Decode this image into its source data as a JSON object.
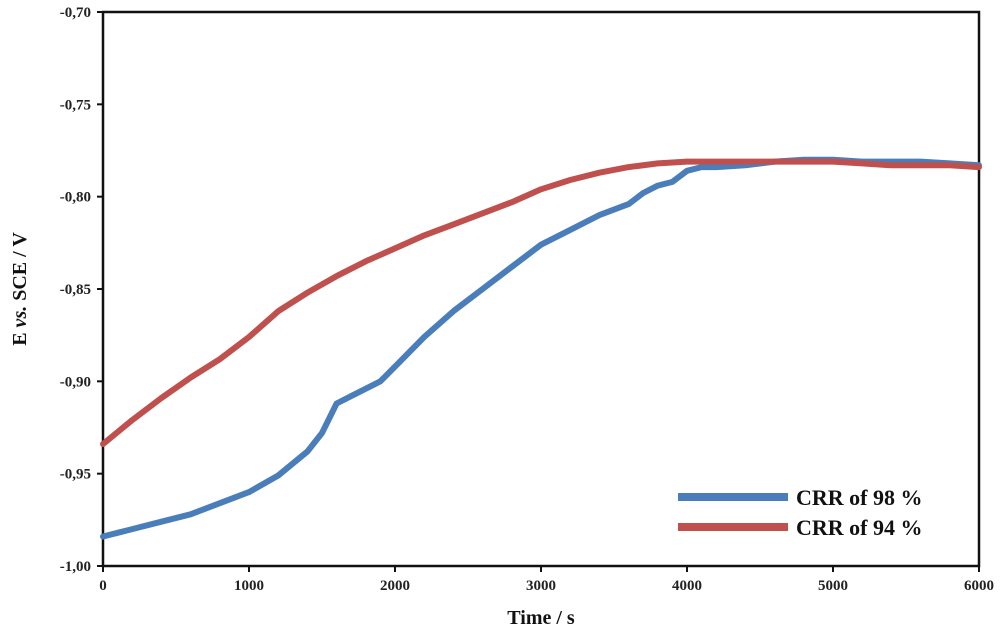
{
  "chart_data": {
    "type": "line",
    "xlabel": "Time / s",
    "ylabel_parts": [
      "E ",
      "vs.",
      " SCE / V"
    ],
    "xlim": [
      0,
      6000
    ],
    "ylim": [
      -1.0,
      -0.7
    ],
    "x_ticks": [
      0,
      1000,
      2000,
      3000,
      4000,
      5000,
      6000
    ],
    "x_tick_labels": [
      "0",
      "1000",
      "2000",
      "3000",
      "4000",
      "5000",
      "6000"
    ],
    "y_ticks": [
      -0.7,
      -0.75,
      -0.8,
      -0.85,
      -0.9,
      -0.95,
      -1.0
    ],
    "y_tick_labels": [
      "-0,70",
      "-0,75",
      "-0,80",
      "-0,85",
      "-0,90",
      "-0,95",
      "-1,00"
    ],
    "grid": false,
    "legend_position": "bottom-right",
    "series": [
      {
        "name": "CRR of 98 %",
        "color": "#4a7ebb",
        "x": [
          0,
          100,
          200,
          400,
          600,
          800,
          1000,
          1200,
          1400,
          1500,
          1600,
          1700,
          1800,
          1900,
          2000,
          2200,
          2400,
          2600,
          2800,
          3000,
          3200,
          3400,
          3600,
          3700,
          3800,
          3900,
          4000,
          4100,
          4200,
          4400,
          4600,
          4800,
          5000,
          5200,
          5400,
          5600,
          5800,
          6000
        ],
        "y": [
          -0.984,
          -0.982,
          -0.98,
          -0.976,
          -0.972,
          -0.966,
          -0.96,
          -0.951,
          -0.938,
          -0.928,
          -0.912,
          -0.908,
          -0.904,
          -0.9,
          -0.892,
          -0.876,
          -0.862,
          -0.85,
          -0.838,
          -0.826,
          -0.818,
          -0.81,
          -0.804,
          -0.798,
          -0.794,
          -0.792,
          -0.786,
          -0.784,
          -0.784,
          -0.783,
          -0.781,
          -0.78,
          -0.78,
          -0.781,
          -0.781,
          -0.781,
          -0.782,
          -0.783
        ]
      },
      {
        "name": "CRR of 94 %",
        "color": "#c0504d",
        "x": [
          0,
          200,
          400,
          600,
          800,
          1000,
          1200,
          1400,
          1600,
          1800,
          2000,
          2200,
          2400,
          2600,
          2800,
          3000,
          3200,
          3400,
          3600,
          3800,
          4000,
          4200,
          4400,
          4600,
          4800,
          5000,
          5200,
          5400,
          5600,
          5800,
          6000
        ],
        "y": [
          -0.934,
          -0.921,
          -0.909,
          -0.898,
          -0.888,
          -0.876,
          -0.862,
          -0.852,
          -0.843,
          -0.835,
          -0.828,
          -0.821,
          -0.815,
          -0.809,
          -0.803,
          -0.796,
          -0.791,
          -0.787,
          -0.784,
          -0.782,
          -0.781,
          -0.781,
          -0.781,
          -0.781,
          -0.781,
          -0.781,
          -0.782,
          -0.783,
          -0.783,
          -0.783,
          -0.784
        ]
      }
    ]
  }
}
